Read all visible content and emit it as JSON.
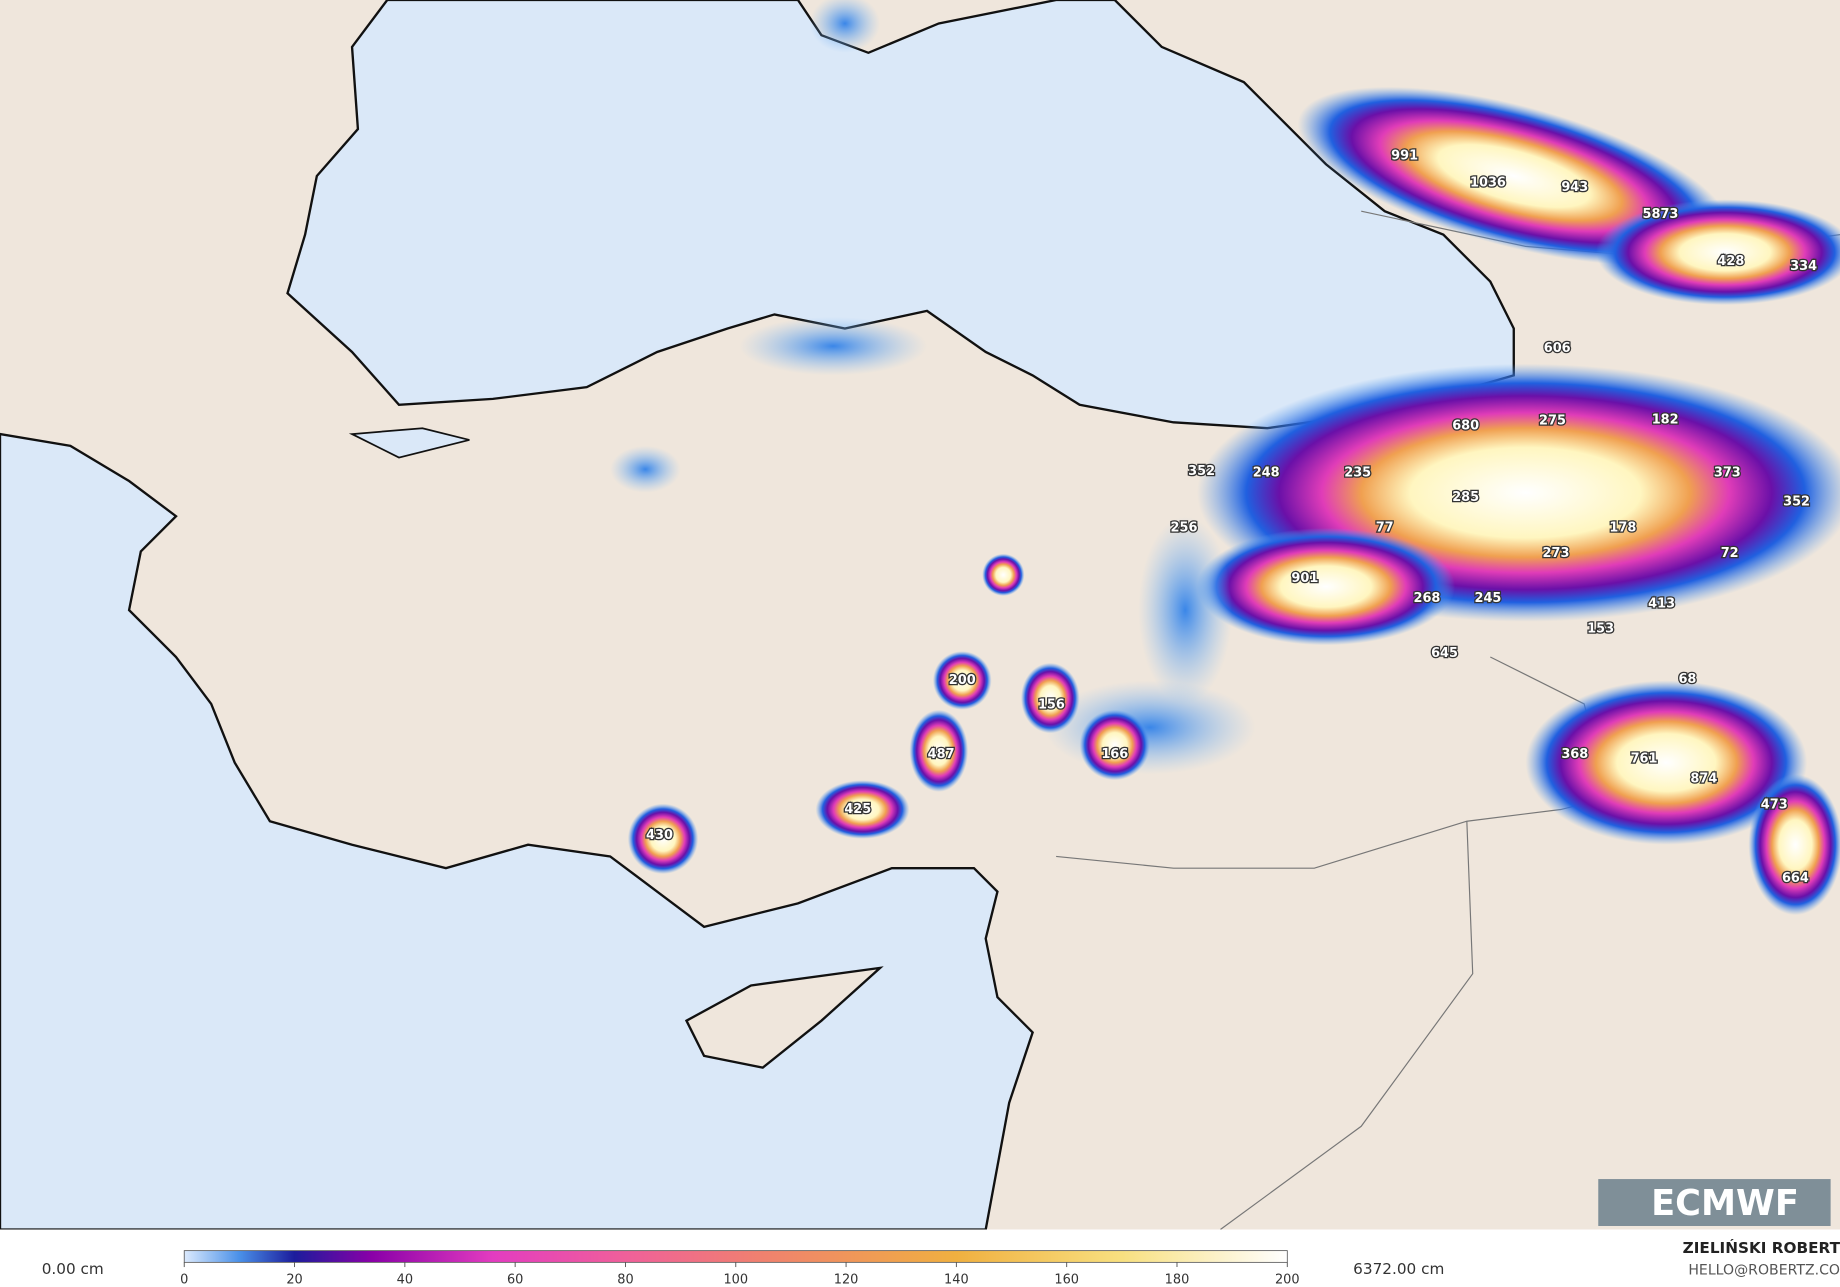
{
  "map": {
    "snow_depth_labels": [
      991,
      1036,
      943,
      5873,
      428,
      334,
      606,
      275,
      182,
      680,
      373,
      352,
      248,
      235,
      285,
      352,
      256,
      77,
      178,
      273,
      72,
      901,
      268,
      245,
      413,
      153,
      645,
      200,
      68,
      156,
      487,
      166,
      368,
      761,
      874,
      425,
      473,
      430,
      664
    ],
    "colorbar": {
      "min_label": "0.00 cm",
      "max_label": "6372.00 cm",
      "range": [
        0,
        200
      ],
      "ticks": [
        0,
        20,
        40,
        60,
        80,
        100,
        120,
        140,
        160,
        180,
        200
      ]
    },
    "logo": "ECMWF",
    "author": "ZIELIŃSKI ROBERT",
    "contact": "HELLO@ROBERTZ.CO"
  }
}
